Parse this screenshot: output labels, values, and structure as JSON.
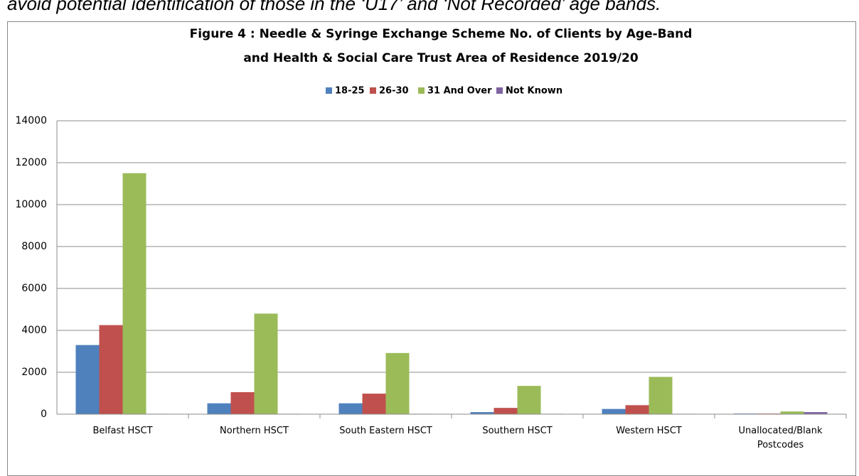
{
  "caption": "avoid potential identification of those in the ‘U17’ and ‘Not Recorded’ age bands.",
  "chart_data": {
    "type": "bar",
    "title": [
      "Figure 4 : Needle & Syringe Exchange Scheme No. of Clients by Age-Band",
      "and Health & Social Care Trust Area of Residence 2019/20"
    ],
    "categories": [
      "Belfast HSCT",
      "Northern HSCT",
      "South Eastern HSCT",
      "Southern HSCT",
      "Western HSCT",
      "Unallocated/Blank Postcodes"
    ],
    "series": [
      {
        "name": "18-25",
        "color": "#4f81bd",
        "values": [
          3300,
          520,
          520,
          100,
          250,
          30
        ]
      },
      {
        "name": "26-30",
        "color": "#c0504d",
        "values": [
          4250,
          1050,
          980,
          300,
          430,
          30
        ]
      },
      {
        "name": "31 And Over",
        "color": "#9bbb59",
        "values": [
          11500,
          4800,
          2920,
          1350,
          1780,
          130
        ]
      },
      {
        "name": "Not Known",
        "color": "#8064a2",
        "values": [
          20,
          20,
          20,
          20,
          20,
          100
        ]
      }
    ],
    "ylim": [
      0,
      14000
    ],
    "yticks": [
      0,
      2000,
      4000,
      6000,
      8000,
      10000,
      12000,
      14000
    ],
    "grid": true,
    "legend": "top"
  }
}
